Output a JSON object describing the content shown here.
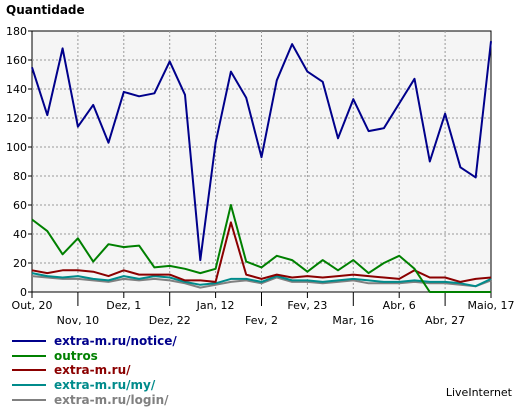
{
  "chart_data": {
    "type": "line",
    "ylabel": "Quantidade",
    "ylim": [
      0,
      180
    ],
    "yticks": [
      0,
      20,
      40,
      60,
      80,
      100,
      120,
      140,
      160,
      180
    ],
    "grid": true,
    "legend_position": "bottom-left",
    "x_tick_labels": [
      {
        "label": "Out, 20",
        "i": 0,
        "row": 1
      },
      {
        "label": "Nov, 10",
        "i": 3,
        "row": 2
      },
      {
        "label": "Dez, 1",
        "i": 6,
        "row": 1
      },
      {
        "label": "Dez, 22",
        "i": 9,
        "row": 2
      },
      {
        "label": "Jan, 12",
        "i": 12,
        "row": 1
      },
      {
        "label": "Fev, 2",
        "i": 15,
        "row": 2
      },
      {
        "label": "Fev, 23",
        "i": 18,
        "row": 1
      },
      {
        "label": "Mar, 16",
        "i": 21,
        "row": 2
      },
      {
        "label": "Abr, 6",
        "i": 24,
        "row": 1
      },
      {
        "label": "Abr, 27",
        "i": 27,
        "row": 2
      },
      {
        "label": "Maio, 17",
        "i": 30,
        "row": 1
      }
    ],
    "series": [
      {
        "name": "extra-m.ru/notice/",
        "color": "#00008b",
        "values": [
          155,
          122,
          168,
          114,
          129,
          103,
          138,
          135,
          137,
          159,
          136,
          22,
          103,
          152,
          134,
          93,
          146,
          171,
          152,
          145,
          106,
          133,
          111,
          113,
          130,
          147,
          90,
          123,
          86,
          79,
          173
        ]
      },
      {
        "name": "outros",
        "color": "#008000",
        "values": [
          50,
          42,
          26,
          37,
          21,
          33,
          31,
          32,
          17,
          18,
          16,
          13,
          16,
          60,
          21,
          17,
          25,
          22,
          14,
          22,
          15,
          22,
          13,
          20,
          25,
          16,
          0,
          0,
          0,
          0,
          0
        ]
      },
      {
        "name": "extra-m.ru/",
        "color": "#8b0000",
        "values": [
          15,
          13,
          15,
          15,
          14,
          11,
          15,
          12,
          12,
          12,
          8,
          8,
          7,
          48,
          12,
          9,
          12,
          10,
          11,
          10,
          11,
          12,
          11,
          10,
          9,
          15,
          10,
          10,
          7,
          9,
          10
        ]
      },
      {
        "name": "extra-m.ru/my/",
        "color": "#008b8b",
        "values": [
          13,
          11,
          10,
          11,
          9,
          8,
          11,
          9,
          11,
          10,
          7,
          5,
          6,
          9,
          9,
          7,
          11,
          8,
          8,
          7,
          8,
          9,
          8,
          7,
          7,
          8,
          7,
          7,
          6,
          4,
          9
        ]
      },
      {
        "name": "extra-m.ru/login/",
        "color": "#808080",
        "values": [
          11,
          10,
          9,
          9,
          8,
          7,
          9,
          8,
          9,
          8,
          6,
          3,
          5,
          7,
          8,
          6,
          10,
          7,
          7,
          6,
          7,
          8,
          6,
          6,
          6,
          7,
          6,
          6,
          5,
          4,
          8
        ]
      }
    ]
  },
  "brand": "LiveInternet"
}
